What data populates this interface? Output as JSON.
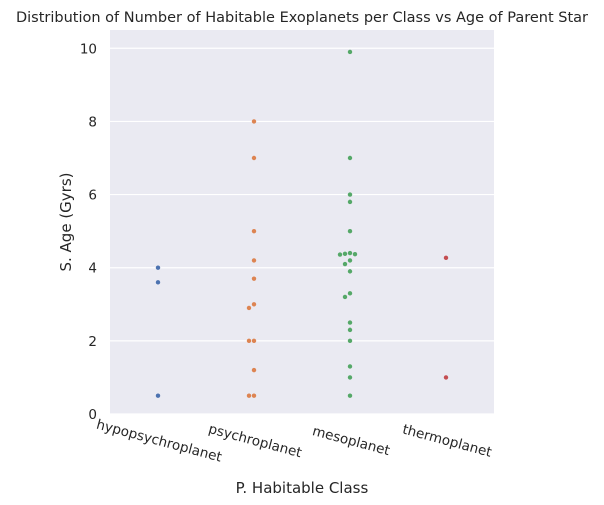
{
  "chart_data": {
    "type": "scatter",
    "title": "Distribution of Number of Habitable Exoplanets per Class vs Age of Parent Star",
    "xlabel": "P. Habitable Class",
    "ylabel": "S. Age (Gyrs)",
    "ylim": [
      0,
      10.5
    ],
    "yticks": [
      0,
      2,
      4,
      6,
      8,
      10
    ],
    "grid": true,
    "legend": "none",
    "categories": [
      "hypopsychroplanet",
      "psychroplanet",
      "mesoplanet",
      "thermoplanet"
    ],
    "series": [
      {
        "category": "hypopsychroplanet",
        "color": "#4c72b0",
        "values": [
          4.0,
          3.6,
          0.5
        ]
      },
      {
        "category": "psychroplanet",
        "color": "#dd8452",
        "values": [
          8.0,
          7.0,
          5.0,
          4.2,
          3.7,
          3.0,
          2.9,
          2.0,
          2.0,
          1.2,
          0.5,
          0.5
        ]
      },
      {
        "category": "mesoplanet",
        "color": "#55a868",
        "values": [
          9.9,
          7.0,
          6.0,
          5.8,
          5.0,
          4.4,
          4.38,
          4.37,
          4.36,
          4.2,
          4.1,
          3.9,
          3.3,
          3.2,
          2.5,
          2.3,
          2.0,
          1.3,
          1.0,
          0.5
        ]
      },
      {
        "category": "thermoplanet",
        "color": "#c44e52",
        "values": [
          4.27,
          1.0
        ]
      }
    ]
  }
}
